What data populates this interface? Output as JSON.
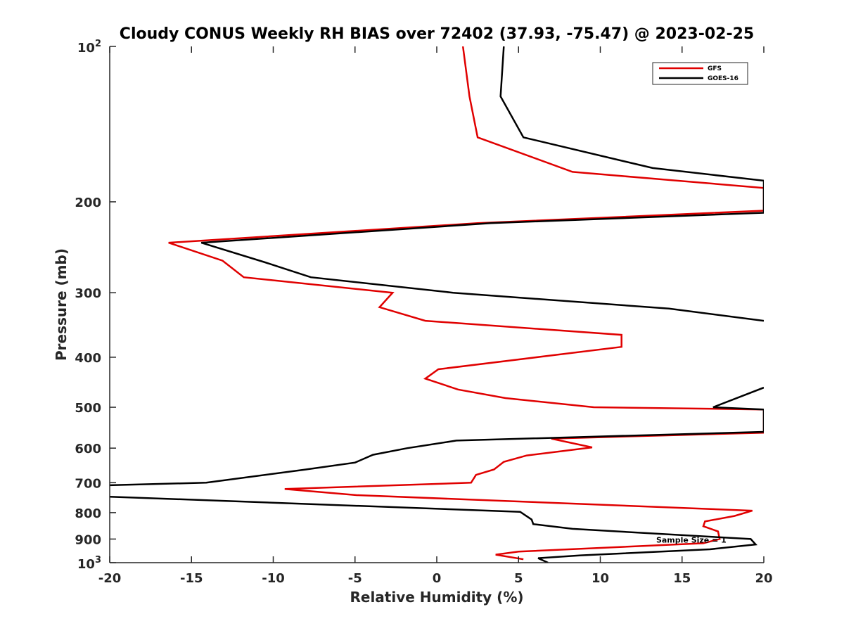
{
  "chart_data": {
    "type": "line",
    "title": "Cloudy CONUS Weekly RH BIAS over 72402 (37.93, -75.47) @ 2023-02-25",
    "xlabel": "Relative Humidity (%)",
    "ylabel": "Pressure (mb)",
    "xlim": [
      -20,
      20
    ],
    "ylim": [
      100,
      1000
    ],
    "yscale": "log",
    "y_reversed": true,
    "grid": false,
    "legend_placement": "top-right",
    "xticks": [
      -20,
      -15,
      -10,
      -5,
      0,
      5,
      10,
      15,
      20
    ],
    "xtick_labels": [
      "-20",
      "-15",
      "-10",
      "-5",
      "0",
      "5",
      "10",
      "15",
      "20"
    ],
    "yticks": [
      {
        "value": 100,
        "base": "10",
        "exp": "2"
      },
      {
        "value": 200,
        "label": "200"
      },
      {
        "value": 300,
        "label": "300"
      },
      {
        "value": 400,
        "label": "400"
      },
      {
        "value": 500,
        "label": "500"
      },
      {
        "value": 600,
        "label": "600"
      },
      {
        "value": 700,
        "label": "700"
      },
      {
        "value": 800,
        "label": "800"
      },
      {
        "value": 900,
        "label": "900"
      },
      {
        "value": 1000,
        "base": "10",
        "exp": "3"
      }
    ],
    "annotation": {
      "text": "Sample Size = 1",
      "x": 17.5,
      "y": 900
    },
    "series": [
      {
        "name": "GFS",
        "color": "#e00000",
        "points": [
          [
            1.6,
            100
          ],
          [
            2.0,
            125
          ],
          [
            2.5,
            150
          ],
          [
            8.3,
            175
          ],
          [
            20.0,
            188
          ],
          [
            20.0,
            208
          ],
          [
            2.5,
            220
          ],
          [
            -16.4,
            240
          ],
          [
            -13.1,
            260
          ],
          [
            -11.8,
            280
          ],
          [
            -2.7,
            300
          ],
          [
            -3.5,
            320
          ],
          [
            -0.7,
            340
          ],
          [
            11.3,
            362
          ],
          [
            11.3,
            382
          ],
          [
            0.1,
            422
          ],
          [
            -0.7,
            440
          ],
          [
            1.3,
            462
          ],
          [
            4.2,
            480
          ],
          [
            9.6,
            500
          ],
          [
            20.0,
            505
          ],
          [
            20.0,
            560
          ],
          [
            7.0,
            575
          ],
          [
            9.5,
            598
          ],
          [
            5.5,
            620
          ],
          [
            4.1,
            638
          ],
          [
            3.5,
            660
          ],
          [
            2.4,
            676
          ],
          [
            2.1,
            700
          ],
          [
            -9.3,
            720
          ],
          [
            -4.9,
            740
          ],
          [
            19.3,
            793
          ],
          [
            18.2,
            812
          ],
          [
            16.4,
            832
          ],
          [
            16.3,
            850
          ],
          [
            17.2,
            870
          ],
          [
            17.3,
            900
          ],
          [
            16.3,
            917
          ],
          [
            5.0,
            952
          ],
          [
            3.6,
            965
          ],
          [
            5.3,
            985
          ]
        ]
      },
      {
        "name": "GOES-16",
        "color": "#000000",
        "points": [
          [
            4.1,
            100
          ],
          [
            3.9,
            125
          ],
          [
            5.3,
            150
          ],
          [
            13.2,
            172
          ],
          [
            20.0,
            182
          ],
          [
            20.0,
            210
          ],
          [
            3.3,
            220
          ],
          [
            -14.4,
            240
          ],
          [
            -10.5,
            262
          ],
          [
            -7.7,
            280
          ],
          [
            1.0,
            300
          ],
          [
            14.2,
            322
          ],
          [
            20.0,
            340
          ],
          [
            null,
            440
          ],
          [
            20.0,
            458
          ],
          [
            16.9,
            500
          ],
          [
            20.0,
            505
          ],
          [
            20.0,
            558
          ],
          [
            1.2,
            580
          ],
          [
            -1.8,
            600
          ],
          [
            -3.9,
            618
          ],
          [
            -5.0,
            640
          ],
          [
            -8.0,
            660
          ],
          [
            -14.1,
            700
          ],
          [
            -20.0,
            708
          ],
          [
            null,
            735
          ],
          [
            -20.0,
            745
          ],
          [
            5.1,
            797
          ],
          [
            5.8,
            825
          ],
          [
            5.9,
            842
          ],
          [
            8.3,
            860
          ],
          [
            19.2,
            900
          ],
          [
            19.5,
            922
          ],
          [
            16.7,
            942
          ],
          [
            8.8,
            968
          ],
          [
            6.2,
            980
          ],
          [
            6.8,
            1000
          ]
        ]
      }
    ]
  }
}
